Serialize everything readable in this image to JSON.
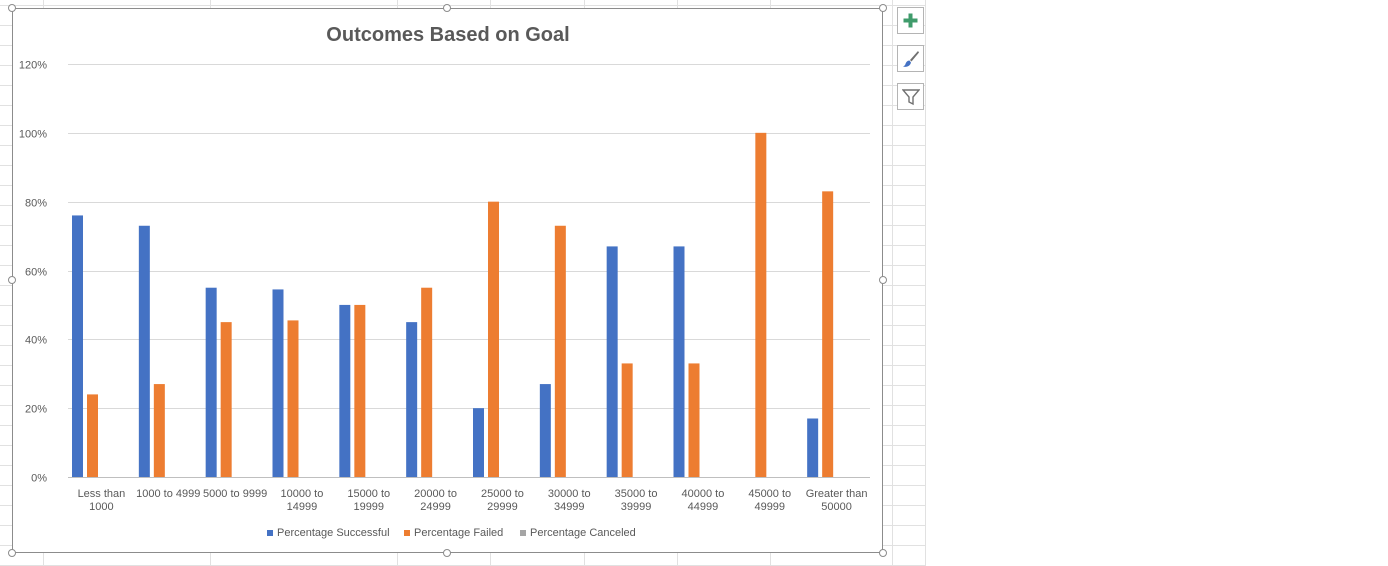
{
  "chart_data": {
    "type": "bar",
    "title": "Outcomes Based on Goal",
    "xlabel": "",
    "ylabel": "",
    "ylim": [
      0,
      1.2
    ],
    "yticks": [
      0,
      0.2,
      0.4,
      0.6,
      0.8,
      1.0,
      1.2
    ],
    "ytick_labels": [
      "0%",
      "20%",
      "40%",
      "60%",
      "80%",
      "100%",
      "120%"
    ],
    "grid": true,
    "legend_position": "bottom",
    "categories": [
      [
        "Less than",
        "1000"
      ],
      [
        "1000 to 4999"
      ],
      [
        "5000 to 9999"
      ],
      [
        "10000 to",
        "14999"
      ],
      [
        "15000 to",
        "19999"
      ],
      [
        "20000 to",
        "24999"
      ],
      [
        "25000 to",
        "29999"
      ],
      [
        "30000 to",
        "34999"
      ],
      [
        "35000 to",
        "39999"
      ],
      [
        "40000 to",
        "44999"
      ],
      [
        "45000 to",
        "49999"
      ],
      [
        "Greater than",
        "50000"
      ]
    ],
    "series": [
      {
        "name": "Percentage Successful",
        "color": "#4472c4",
        "values": [
          0.76,
          0.73,
          0.55,
          0.545,
          0.5,
          0.45,
          0.2,
          0.27,
          0.67,
          0.67,
          0,
          0.17
        ]
      },
      {
        "name": "Percentage Failed",
        "color": "#ed7d31",
        "values": [
          0.24,
          0.27,
          0.45,
          0.455,
          0.5,
          0.55,
          0.8,
          0.73,
          0.33,
          0.33,
          1.0,
          0.83
        ]
      },
      {
        "name": "Percentage Canceled",
        "color": "#a5a5a5",
        "values": [
          0,
          0,
          0,
          0,
          0,
          0,
          0,
          0,
          0,
          0,
          0,
          0
        ]
      }
    ]
  },
  "toolbar": {
    "buttons": [
      {
        "name": "chart-elements-button",
        "icon": "plus-icon",
        "color": "#3f9b6b"
      },
      {
        "name": "chart-styles-button",
        "icon": "brush-icon",
        "color": "#4472c4"
      },
      {
        "name": "chart-filters-button",
        "icon": "filter-icon",
        "color": "#707070"
      }
    ]
  }
}
